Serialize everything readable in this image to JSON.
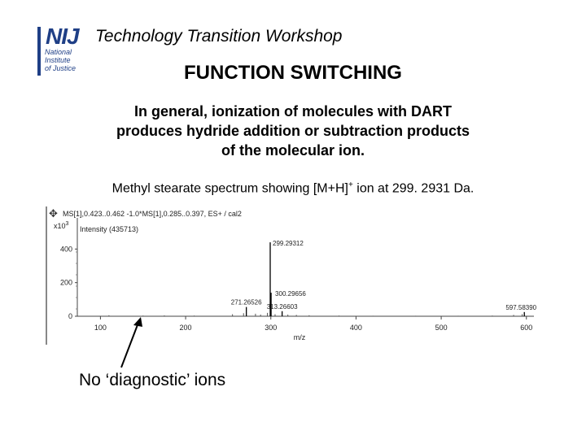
{
  "header": {
    "logo": {
      "letters": "NIJ",
      "lines": [
        "National",
        "Institute",
        "of Justice"
      ]
    },
    "title": "Technology Transition Workshop"
  },
  "slide": {
    "title": "FUNCTION SWITCHING",
    "paragraph_lines": [
      "In general, ionization of molecules with DART",
      "produces hydride addition or subtraction products",
      "of the molecular ion."
    ],
    "caption_prefix": "Methyl stearate spectrum showing [M+H]",
    "caption_sup": "+",
    "caption_suffix": " ion at 299. 2931 Da.",
    "annotation": "No ‘diagnostic’ ions"
  },
  "spectrum": {
    "header_text": "MS[1],0.423..0.462 -1.0*MS[1],0.285..0.397, ES+ / cal2",
    "scale_text": "x10",
    "scale_exp": "3",
    "intensity_text": "Intensity (435713)",
    "move_icon": "move-icon"
  },
  "chart_data": {
    "type": "bar",
    "title": "",
    "xlabel": "m/z",
    "ylabel": "",
    "xlim": [
      70,
      605
    ],
    "ylim": [
      0,
      450
    ],
    "x_ticks": [
      100,
      200,
      300,
      400,
      500,
      600
    ],
    "y_ticks": [
      0,
      200,
      400
    ],
    "y_tick_labels": [
      "0",
      "200",
      "400"
    ],
    "peaks": [
      {
        "x": 299.29312,
        "y": 440,
        "label": "299.29312"
      },
      {
        "x": 300.29656,
        "y": 140,
        "label": "300.29656"
      },
      {
        "x": 271.26526,
        "y": 55,
        "label": "271.26526"
      },
      {
        "x": 313.26603,
        "y": 30,
        "label": "313.26603"
      },
      {
        "x": 597.5839,
        "y": 25,
        "label": "597.58390"
      }
    ],
    "noise": [
      {
        "x": 110,
        "y": 6
      },
      {
        "x": 150,
        "y": 4
      },
      {
        "x": 175,
        "y": 5
      },
      {
        "x": 210,
        "y": 4
      },
      {
        "x": 255,
        "y": 12
      },
      {
        "x": 268,
        "y": 18
      },
      {
        "x": 282,
        "y": 15
      },
      {
        "x": 288,
        "y": 10
      },
      {
        "x": 296,
        "y": 20
      },
      {
        "x": 305,
        "y": 12
      },
      {
        "x": 320,
        "y": 10
      },
      {
        "x": 330,
        "y": 8
      },
      {
        "x": 345,
        "y": 6
      },
      {
        "x": 380,
        "y": 4
      },
      {
        "x": 420,
        "y": 3
      },
      {
        "x": 470,
        "y": 3
      },
      {
        "x": 520,
        "y": 3
      },
      {
        "x": 560,
        "y": 4
      },
      {
        "x": 585,
        "y": 8
      },
      {
        "x": 595,
        "y": 12
      }
    ]
  }
}
